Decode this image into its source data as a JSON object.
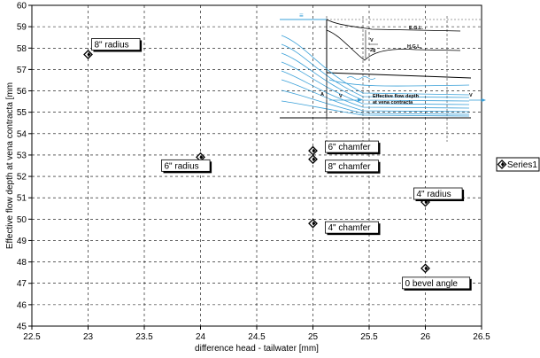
{
  "chart_data": {
    "type": "scatter",
    "xlabel": "difference head - tailwater [mm]",
    "ylabel": "Effective flow depth at vena contracta [mm",
    "xlim": [
      22.5,
      26.5
    ],
    "ylim": [
      45,
      60
    ],
    "x_ticks": [
      "22.5",
      "23",
      "23.5",
      "24",
      "24.5",
      "25",
      "25.5",
      "26",
      "26.5"
    ],
    "y_ticks": [
      "45",
      "46",
      "47",
      "48",
      "49",
      "50",
      "51",
      "52",
      "53",
      "54",
      "55",
      "56",
      "57",
      "58",
      "59",
      "60"
    ],
    "grid": "dashed major gridlines",
    "legend_position": "right",
    "series": [
      {
        "name": "Series1",
        "color": "#000000",
        "marker": "diamond",
        "points": [
          {
            "x": 23.0,
            "y": 57.7
          },
          {
            "x": 24.0,
            "y": 52.9
          },
          {
            "x": 25.0,
            "y": 53.2
          },
          {
            "x": 25.0,
            "y": 52.8
          },
          {
            "x": 25.0,
            "y": 49.8
          },
          {
            "x": 26.0,
            "y": 50.8
          },
          {
            "x": 26.0,
            "y": 47.7
          }
        ]
      }
    ],
    "annotations": [
      {
        "text": "8\" radius",
        "x": 23.0,
        "y": 57.7
      },
      {
        "text": "6\" radius",
        "x": 24.0,
        "y": 52.9
      },
      {
        "text": "6\" chamfer",
        "x": 25.0,
        "y": 53.2
      },
      {
        "text": "8\" chamfer",
        "x": 25.0,
        "y": 52.8
      },
      {
        "text": "4\" chamfer",
        "x": 25.0,
        "y": 49.8
      },
      {
        "text": "4\" radius",
        "x": 26.0,
        "y": 50.8
      },
      {
        "text": "0 bevel angle",
        "x": 26.0,
        "y": 47.7
      }
    ]
  },
  "inset_diagram": {
    "labels": {
      "egl": "E.G.L.",
      "hgl": "H.G.L.",
      "velocity_head_top": "V",
      "velocity_head_bottom": "2g",
      "section": "A",
      "v_in": "V",
      "v_out": "V",
      "caption_line1": "Effective flow depth",
      "caption_line2": "at vena contracta"
    },
    "water_color": "#3aa0d8"
  }
}
